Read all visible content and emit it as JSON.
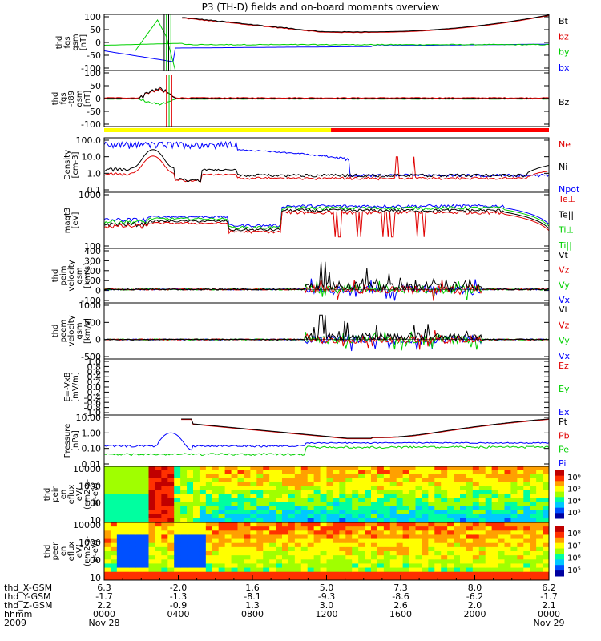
{
  "title": "P3 (TH-D) fields and on-board moments overview",
  "colors": {
    "black": "#000000",
    "red": "#e00000",
    "green": "#00d000",
    "blue": "#0000ff"
  },
  "chart_data": [
    {
      "type": "line",
      "panel": "fgs",
      "ylabel_lines": [
        "thd",
        "fgs",
        "gsm",
        "[nT]"
      ],
      "yticks": [
        "100",
        "50",
        "0",
        "-50",
        "-100"
      ],
      "ylim": [
        -100,
        100
      ],
      "series": [
        {
          "name": "Bt"
        },
        {
          "name": "bz"
        },
        {
          "name": "by"
        },
        {
          "name": "bx"
        }
      ]
    },
    {
      "type": "line",
      "panel": "fgs_t89",
      "ylabel_lines": [
        "thd",
        "fgs",
        "-t89",
        "gsm",
        "[nT]"
      ],
      "yticks": [
        "100",
        "50",
        "0",
        "-50",
        "-100"
      ],
      "ylim": [
        -120,
        120
      ],
      "series": [
        {
          "name": "Bz"
        }
      ]
    },
    {
      "type": "line",
      "panel": "density",
      "log_scale": true,
      "ylabel_lines": [
        "Density",
        "[cm-3]"
      ],
      "yticks": [
        "100.0",
        "10.0",
        "1.0",
        "0.1"
      ],
      "ylim": [
        0.1,
        100
      ],
      "series": [
        {
          "name": "Ne"
        },
        {
          "name": "Ni"
        },
        {
          "name": "Npot"
        }
      ]
    },
    {
      "type": "line",
      "panel": "temperature",
      "log_scale": true,
      "ylabel_lines": [
        "magt3",
        "[eV]"
      ],
      "yticks": [
        "1000",
        "100"
      ],
      "ylim": [
        30,
        8000
      ],
      "series": [
        {
          "name": "Te⊥"
        },
        {
          "name": "Te||"
        },
        {
          "name": "Ti⊥"
        },
        {
          "name": "Ti||"
        }
      ]
    },
    {
      "type": "line",
      "panel": "peim_velocity",
      "ylabel_lines": [
        "thd",
        "peim",
        "velocity",
        "gsm",
        "[km/s]"
      ],
      "yticks": [
        "400",
        "300",
        "200",
        "100",
        "0",
        "-100"
      ],
      "ylim": [
        -120,
        420
      ],
      "series": [
        {
          "name": "Vt"
        },
        {
          "name": "Vz"
        },
        {
          "name": "Vy"
        },
        {
          "name": "Vx"
        }
      ]
    },
    {
      "type": "line",
      "panel": "peem_velocity",
      "ylabel_lines": [
        "thd",
        "peem",
        "velocity",
        "gsm",
        "[km/s]"
      ],
      "yticks": [
        "1000",
        "500",
        "0",
        "-500"
      ],
      "ylim": [
        -700,
        1400
      ],
      "series": [
        {
          "name": "Vt"
        },
        {
          "name": "Vz"
        },
        {
          "name": "Vy"
        },
        {
          "name": "Vx"
        }
      ]
    },
    {
      "type": "line",
      "panel": "e_vxb",
      "ylabel_lines": [
        "E=-VxB",
        "[mV/m]"
      ],
      "yticks": [
        "1.0",
        "0.8",
        "0.6",
        "0.4",
        "0.2",
        "0.0",
        "-0.2",
        "-0.4",
        "-0.6",
        "-0.8",
        "-1.0"
      ],
      "ylim": [
        -1,
        1
      ],
      "series": [
        {
          "name": "Ez"
        },
        {
          "name": "Ey"
        },
        {
          "name": "Ex"
        }
      ]
    },
    {
      "type": "line",
      "panel": "pressure",
      "log_scale": true,
      "ylabel_lines": [
        "Pressure",
        "[nPa]"
      ],
      "yticks": [
        "10.00",
        "1.00",
        "0.10",
        "0.01"
      ],
      "ylim": [
        0.004,
        30
      ],
      "series": [
        {
          "name": "Pt"
        },
        {
          "name": "Pb"
        },
        {
          "name": "Pe"
        },
        {
          "name": "Pi"
        }
      ]
    },
    {
      "type": "heatmap",
      "panel": "peir_spec",
      "log_scale": true,
      "ylabel_lines": [
        "thd",
        "peir",
        "en",
        "eflux",
        "eV/",
        "(cm2-s-",
        "sr-eV)"
      ],
      "yticks": [
        "10000",
        "1000",
        "100",
        "10"
      ],
      "colorbar_ticks": [
        "10⁶",
        "10⁵",
        "10⁴",
        "10³"
      ]
    },
    {
      "type": "heatmap",
      "panel": "peer_spec",
      "log_scale": true,
      "ylabel_lines": [
        "thd",
        "peer",
        "en",
        "eflux",
        "eV/",
        "(cm2-s-",
        "sr-eV)"
      ],
      "yticks": [
        "10000",
        "1000",
        "100",
        "10"
      ],
      "colorbar_ticks": [
        "10⁸",
        "10⁷",
        "10⁶",
        "10⁵"
      ]
    }
  ],
  "xaxis": {
    "row_labels": [
      "thd_X-GSM",
      "thd_Y-GSM",
      "thd_Z-GSM",
      "hhmm",
      "2009"
    ],
    "columns": [
      {
        "x": "6.3",
        "y": "-1.7",
        "z": "2.2",
        "hhmm": "0000",
        "date": "Nov 28"
      },
      {
        "x": "-2.0",
        "y": "-1.3",
        "z": "-0.9",
        "hhmm": "0400",
        "date": ""
      },
      {
        "x": "1.6",
        "y": "-8.1",
        "z": "1.3",
        "hhmm": "0800",
        "date": ""
      },
      {
        "x": "5.0",
        "y": "-9.3",
        "z": "3.0",
        "hhmm": "1200",
        "date": ""
      },
      {
        "x": "7.3",
        "y": "-8.6",
        "z": "2.6",
        "hhmm": "1600",
        "date": ""
      },
      {
        "x": "8.0",
        "y": "-6.2",
        "z": "2.0",
        "hhmm": "2000",
        "date": ""
      },
      {
        "x": "6.2",
        "y": "-1.7",
        "z": "2.1",
        "hhmm": "0000",
        "date": "Nov 29"
      }
    ]
  }
}
